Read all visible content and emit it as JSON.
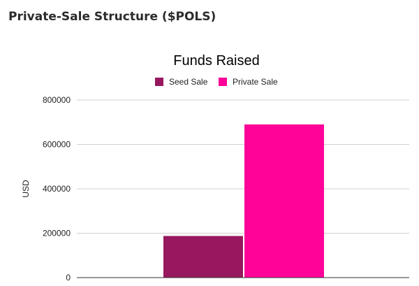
{
  "page": {
    "heading": "Private-Sale Structure ($POLS)"
  },
  "chart_data": {
    "type": "bar",
    "title": "Funds Raised",
    "xlabel": "",
    "ylabel": "USD",
    "ylim": [
      0,
      800000
    ],
    "yticks": [
      0,
      200000,
      400000,
      600000,
      800000
    ],
    "grid": true,
    "legend_position": "top",
    "series": [
      {
        "name": "Seed Sale",
        "value": 187500,
        "color": "#97185e"
      },
      {
        "name": "Private Sale",
        "value": 690000,
        "color": "#ff0399"
      }
    ]
  }
}
